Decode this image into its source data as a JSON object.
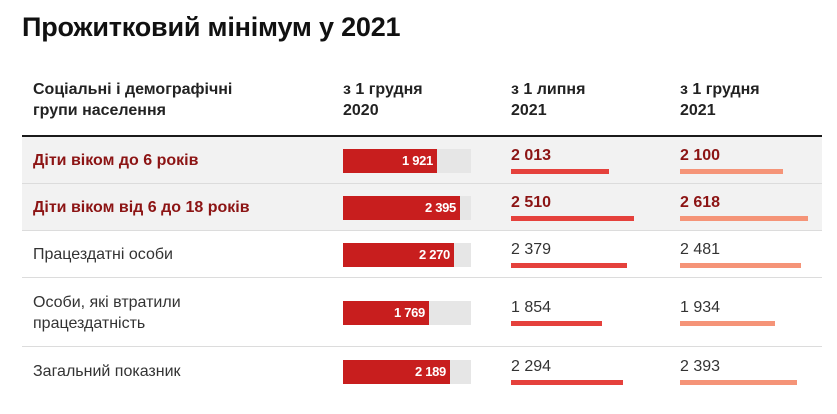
{
  "title": "Прожитковий мінімум у 2021",
  "headers": {
    "group": [
      "Соціальні і демографічні",
      "групи населення"
    ],
    "col1": [
      "з 1 грудня",
      "2020"
    ],
    "col2": [
      "з 1 липня",
      "2021"
    ],
    "col3": [
      "з 1 грудня",
      "2021"
    ]
  },
  "colors": {
    "bar": "#c81e1e",
    "bar_track": "#e6e6e6",
    "july_line": "#e5413c",
    "december_line": "#f59478",
    "highlight_text": "#8c1414"
  },
  "chart_data": {
    "type": "table",
    "columns": [
      "з 1 грудня 2020",
      "з 1 липня 2021",
      "з 1 грудня 2021"
    ],
    "scale_max": 2618,
    "rows": [
      {
        "label": [
          "Діти віком до 6 років"
        ],
        "highlight": true,
        "values": [
          1921,
          2013,
          2100
        ],
        "text": [
          "1 921",
          "2 013",
          "2 100"
        ]
      },
      {
        "label": [
          "Діти віком від 6 до 18 років"
        ],
        "highlight": true,
        "values": [
          2395,
          2510,
          2618
        ],
        "text": [
          "2 395",
          "2 510",
          "2 618"
        ]
      },
      {
        "label": [
          "Працездатні особи"
        ],
        "highlight": false,
        "values": [
          2270,
          2379,
          2481
        ],
        "text": [
          "2 270",
          "2 379",
          "2 481"
        ]
      },
      {
        "label": [
          "Особи, які втратили",
          "працездатність"
        ],
        "highlight": false,
        "values": [
          1769,
          1854,
          1934
        ],
        "text": [
          "1 769",
          "1 854",
          "1 934"
        ]
      },
      {
        "label": [
          "Загальний показник"
        ],
        "highlight": false,
        "values": [
          2189,
          2294,
          2393
        ],
        "text": [
          "2 189",
          "2 294",
          "2 393"
        ]
      }
    ]
  }
}
